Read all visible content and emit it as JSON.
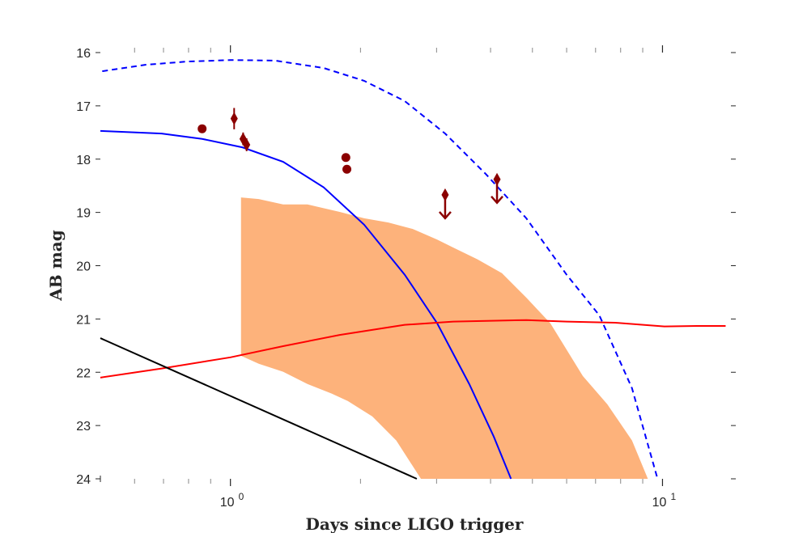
{
  "chart_data": {
    "type": "line",
    "title": "",
    "xlabel": "Days since LIGO trigger",
    "ylabel": "AB mag",
    "x_scale": "log",
    "xlim": [
      0.5,
      14.4
    ],
    "ylim": [
      24,
      16
    ],
    "y_inverted": true,
    "grid": false,
    "legend": "none",
    "x_tick_labels": [
      {
        "base": "10",
        "exp": "0",
        "value": 1
      },
      {
        "base": "10",
        "exp": "1",
        "value": 10
      }
    ],
    "x_minor_ticks": [
      0.6,
      0.7,
      0.8,
      0.9,
      2,
      3,
      4,
      5,
      6,
      7,
      8,
      9
    ],
    "y_ticks": [
      16,
      17,
      18,
      19,
      20,
      21,
      22,
      23,
      24
    ],
    "bands": [
      {
        "color": "#fdb27b",
        "upper": [
          [
            1.058,
            18.72
          ],
          [
            1.163,
            18.75
          ],
          [
            1.324,
            18.85
          ],
          [
            1.507,
            18.85
          ],
          [
            1.79,
            18.99
          ],
          [
            2.039,
            19.11
          ],
          [
            2.32,
            19.19
          ],
          [
            2.64,
            19.31
          ],
          [
            3.01,
            19.51
          ],
          [
            3.28,
            19.66
          ],
          [
            3.73,
            19.88
          ],
          [
            4.25,
            20.14
          ],
          [
            4.84,
            20.6
          ],
          [
            5.5,
            21.08
          ],
          [
            6.54,
            22.07
          ],
          [
            7.45,
            22.6
          ],
          [
            8.5,
            23.28
          ],
          [
            9.25,
            24.0
          ]
        ],
        "lower": [
          [
            1.058,
            21.69
          ],
          [
            1.163,
            21.84
          ],
          [
            1.324,
            21.99
          ],
          [
            1.507,
            22.22
          ],
          [
            1.715,
            22.4
          ],
          [
            1.87,
            22.54
          ],
          [
            2.13,
            22.83
          ],
          [
            2.42,
            23.28
          ],
          [
            2.76,
            24.0
          ]
        ]
      }
    ],
    "series": [
      {
        "color": "#0000ff",
        "style": "solid",
        "points": [
          [
            0.5,
            17.47
          ],
          [
            0.693,
            17.52
          ],
          [
            0.86,
            17.62
          ],
          [
            1.067,
            17.78
          ],
          [
            1.324,
            18.05
          ],
          [
            1.644,
            18.53
          ],
          [
            2.039,
            19.23
          ],
          [
            2.532,
            20.17
          ],
          [
            3.009,
            21.08
          ],
          [
            3.57,
            22.22
          ],
          [
            4.07,
            23.21
          ],
          [
            4.46,
            24.0
          ]
        ]
      },
      {
        "color": "#0000ff",
        "style": "dashed",
        "points": [
          [
            0.505,
            16.35
          ],
          [
            0.635,
            16.23
          ],
          [
            0.789,
            16.17
          ],
          [
            1.0,
            16.14
          ],
          [
            1.268,
            16.15
          ],
          [
            1.644,
            16.29
          ],
          [
            2.039,
            16.53
          ],
          [
            2.532,
            16.91
          ],
          [
            3.14,
            17.52
          ],
          [
            3.9,
            18.28
          ],
          [
            4.84,
            19.11
          ],
          [
            6.0,
            20.17
          ],
          [
            7.14,
            20.93
          ],
          [
            8.5,
            22.3
          ],
          [
            9.74,
            24.0
          ]
        ]
      },
      {
        "color": "#ff0000",
        "style": "solid",
        "points": [
          [
            0.5,
            22.1
          ],
          [
            0.693,
            21.93
          ],
          [
            1.0,
            21.72
          ],
          [
            1.324,
            21.51
          ],
          [
            1.79,
            21.3
          ],
          [
            2.53,
            21.11
          ],
          [
            3.28,
            21.05
          ],
          [
            4.84,
            21.02
          ],
          [
            6.0,
            21.05
          ],
          [
            7.78,
            21.07
          ],
          [
            10.1,
            21.14
          ],
          [
            12.0,
            21.13
          ],
          [
            14.0,
            21.13
          ]
        ]
      },
      {
        "color": "#000000",
        "style": "solid",
        "points": [
          [
            0.5,
            21.36
          ],
          [
            2.7,
            24.0
          ]
        ]
      }
    ],
    "markers": {
      "color": "#8b0000",
      "points": [
        {
          "x": 0.86,
          "y": 17.43,
          "shape": "circle"
        },
        {
          "x": 1.02,
          "y": 17.24,
          "shape": "diamond",
          "err": 0.2
        },
        {
          "x": 1.07,
          "y": 17.62,
          "shape": "diamond",
          "err": 0.12
        },
        {
          "x": 1.09,
          "y": 17.73,
          "shape": "diamond",
          "err": 0.12
        },
        {
          "x": 1.85,
          "y": 17.97,
          "shape": "circle"
        },
        {
          "x": 1.86,
          "y": 18.19,
          "shape": "circle"
        },
        {
          "x": 3.14,
          "y": 18.67,
          "shape": "diamond",
          "upper_limit": true
        },
        {
          "x": 4.14,
          "y": 18.38,
          "shape": "diamond",
          "upper_limit": true
        }
      ]
    }
  }
}
